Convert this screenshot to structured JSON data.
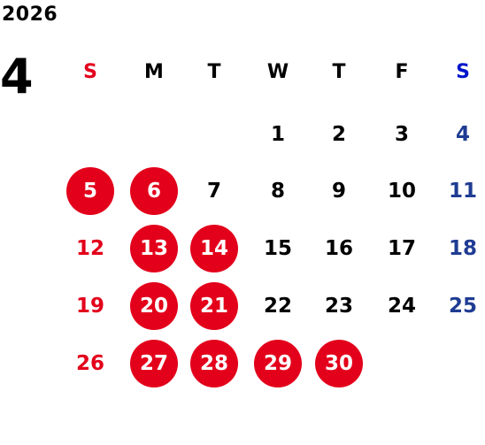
{
  "calendar": {
    "year": "2026",
    "month": "4",
    "weekdays": [
      "S",
      "M",
      "T",
      "W",
      "T",
      "F",
      "S"
    ],
    "first_weekday_index": 3,
    "days_in_month": 30,
    "highlighted_days": [
      5,
      6,
      13,
      14,
      20,
      21,
      27,
      28,
      29,
      30
    ],
    "colors": {
      "sunday": "#e3001b",
      "saturday": "#1f3c93",
      "saturday_header": "#0014cc",
      "highlight_bg": "#e3001b",
      "highlight_text": "#ffffff",
      "default_text": "#000000"
    }
  }
}
